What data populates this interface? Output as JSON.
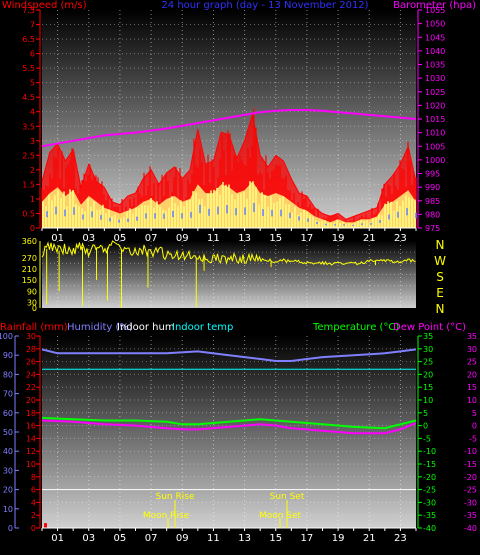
{
  "header": {
    "left_label": "Windspeed (m/s)",
    "center_label": "24 hour graph (day - 13 November 2012)",
    "right_label": "Barometer (hpa)"
  },
  "lower_header": {
    "rain_label": "Rainfall (mm)",
    "hum_label": "Humidity (%)",
    "indoor_hum_label": "Indoor hum",
    "indoor_temp_label": "Indoor temp",
    "temp_label": "Temperature (°C)",
    "dew_label": "Dew Point (°C)"
  },
  "direction_labels": [
    "N",
    "W",
    "S",
    "E",
    "N"
  ],
  "astro": {
    "sun_rise": "Sun Rise",
    "sun_set": "Sun Set",
    "moon_rise": "Moon Rise",
    "moon_set": "Moon Set"
  },
  "colors": {
    "wind_gust": "#ff0000",
    "wind_avg": "#ffff80",
    "wind_avg2": "#6080ff",
    "barometer": "#ff00ff",
    "wind_direction": "#ffff00",
    "humidity": "#8080ff",
    "indoor_humidity": "#ffffff",
    "indoor_temp": "#00ffff",
    "temperature": "#00ff00",
    "dew_point": "#ff00ff",
    "rainfall": "#ff0000",
    "axis_left": "#ff0000",
    "axis_right": "#ff00ff"
  },
  "chart_data": [
    {
      "type": "line",
      "title": "24 hour graph (day - 13 November 2012)",
      "xlabel": "",
      "x_ticks": [
        "01",
        "03",
        "05",
        "07",
        "09",
        "11",
        "13",
        "15",
        "17",
        "19",
        "21",
        "23"
      ],
      "x_range": [
        0,
        24
      ],
      "ylabel": "Windspeed (m/s)",
      "ylim": [
        0,
        7.5
      ],
      "y_ticks": [
        "0",
        "0.5",
        "1",
        "1.5",
        "2",
        "2.5",
        "3",
        "3.5",
        "4",
        "4.5",
        "5",
        "5.5",
        "6",
        "6.5",
        "7",
        "7.5"
      ],
      "y2label": "Barometer (hpa)",
      "y2lim": [
        975,
        1055
      ],
      "y2_ticks": [
        "975",
        "980",
        "985",
        "990",
        "995",
        "1000",
        "1005",
        "1010",
        "1015",
        "1020",
        "1025",
        "1030",
        "1035",
        "1040",
        "1045",
        "1050",
        "1055"
      ],
      "series": [
        {
          "name": "Wind gust",
          "x": [
            0,
            0.5,
            1,
            1.5,
            2,
            2.5,
            3,
            3.5,
            4,
            4.5,
            5,
            5.5,
            6,
            6.5,
            7,
            7.5,
            8,
            8.5,
            9,
            9.5,
            10,
            10.5,
            11,
            11.5,
            12,
            12.5,
            13,
            13.5,
            14,
            14.5,
            15,
            15.5,
            16,
            16.5,
            17,
            17.5,
            18,
            18.5,
            19,
            19.5,
            20,
            20.5,
            21,
            21.5,
            22,
            22.5,
            23,
            23.5,
            24
          ],
          "values": [
            1.6,
            2.6,
            2.9,
            2.3,
            2.7,
            1.4,
            2.2,
            1.6,
            1.4,
            0.9,
            0.8,
            1.1,
            1.2,
            1.7,
            2.0,
            1.5,
            1.9,
            2.1,
            1.7,
            2.0,
            3.4,
            2.2,
            2.3,
            3.3,
            3.2,
            2.4,
            3.0,
            3.9,
            2.5,
            2.1,
            2.5,
            2.3,
            1.7,
            1.2,
            1.1,
            0.7,
            0.5,
            0.4,
            0.5,
            0.3,
            0.4,
            0.5,
            0.6,
            0.7,
            1.5,
            1.8,
            2.2,
            2.8,
            1.6
          ]
        },
        {
          "name": "Wind speed",
          "x": [
            0,
            0.5,
            1,
            1.5,
            2,
            2.5,
            3,
            3.5,
            4,
            4.5,
            5,
            5.5,
            6,
            6.5,
            7,
            7.5,
            8,
            8.5,
            9,
            9.5,
            10,
            10.5,
            11,
            11.5,
            12,
            12.5,
            13,
            13.5,
            14,
            14.5,
            15,
            15.5,
            16,
            16.5,
            17,
            17.5,
            18,
            18.5,
            19,
            19.5,
            20,
            20.5,
            21,
            21.5,
            22,
            22.5,
            23,
            23.5,
            24
          ],
          "values": [
            0.9,
            1.2,
            1.4,
            1.1,
            1.3,
            0.8,
            1.1,
            0.9,
            0.7,
            0.6,
            0.5,
            0.6,
            0.7,
            0.9,
            1.0,
            0.8,
            1.0,
            1.1,
            0.9,
            1.0,
            1.5,
            1.2,
            1.2,
            1.5,
            1.4,
            1.2,
            1.3,
            1.6,
            1.2,
            1.1,
            1.2,
            1.1,
            0.9,
            0.7,
            0.6,
            0.4,
            0.3,
            0.2,
            0.3,
            0.2,
            0.2,
            0.3,
            0.3,
            0.4,
            0.8,
            0.9,
            1.1,
            1.3,
            0.9
          ]
        },
        {
          "name": "Barometer",
          "axis": "right",
          "x": [
            0,
            2,
            4,
            6,
            8,
            10,
            12,
            13,
            14,
            15,
            16,
            17,
            18,
            19,
            20,
            21,
            22,
            23,
            24
          ],
          "values": [
            1005,
            1007,
            1009,
            1010,
            1011.5,
            1013.5,
            1015.5,
            1016.5,
            1017.5,
            1018,
            1018.3,
            1018.3,
            1018,
            1017.5,
            1017,
            1016.5,
            1016,
            1015.5,
            1015
          ]
        }
      ]
    },
    {
      "type": "line",
      "title": "",
      "ylabel": "",
      "ylim": [
        0,
        360
      ],
      "y_ticks": [
        "0",
        "30",
        "90",
        "150",
        "210",
        "270",
        "360"
      ],
      "x_range": [
        0,
        24
      ],
      "series": [
        {
          "name": "Wind direction",
          "x": [
            0,
            0.5,
            1,
            1.5,
            2,
            2.5,
            3,
            3.5,
            4,
            4.5,
            5,
            5.5,
            6,
            6.5,
            7,
            7.5,
            8,
            8.5,
            9,
            9.5,
            10,
            10.5,
            11,
            11.5,
            12,
            12.5,
            13,
            13.5,
            14,
            14.5,
            15,
            15.5,
            16,
            16.5,
            17,
            17.5,
            18,
            18.5,
            19,
            19.5,
            20,
            20.5,
            21,
            21.5,
            22,
            22.5,
            23,
            23.5,
            24
          ],
          "values": [
            300,
            330,
            305,
            320,
            310,
            335,
            300,
            325,
            315,
            340,
            310,
            320,
            300,
            315,
            295,
            305,
            280,
            290,
            275,
            285,
            270,
            280,
            265,
            270,
            262,
            268,
            258,
            265,
            255,
            260,
            250,
            255,
            248,
            250,
            245,
            240,
            240,
            240,
            240,
            240,
            240,
            240,
            255,
            255,
            258,
            245,
            250,
            255,
            250
          ]
        }
      ]
    },
    {
      "type": "line",
      "title": "",
      "x_ticks": [
        "01",
        "03",
        "05",
        "07",
        "09",
        "11",
        "13",
        "15",
        "17",
        "19",
        "21",
        "23"
      ],
      "x_range": [
        0,
        24
      ],
      "ylabel": "Rainfall (mm)",
      "ylim": [
        0,
        30
      ],
      "y_ticks_rain": [
        "0",
        "2",
        "4",
        "6",
        "8",
        "10",
        "12",
        "14",
        "16",
        "18",
        "20",
        "22",
        "24",
        "26",
        "28",
        "30"
      ],
      "y_ticks_humidity": [
        "0",
        "10",
        "20",
        "30",
        "40",
        "50",
        "60",
        "70",
        "80",
        "90",
        "100"
      ],
      "y2label": "Temperature (°C)",
      "y2lim": [
        -40,
        35
      ],
      "y2_ticks": [
        "-40",
        "-35",
        "-30",
        "-25",
        "-20",
        "-15",
        "-10",
        "-5",
        "0",
        "5",
        "10",
        "15",
        "20",
        "25",
        "30",
        "35"
      ],
      "series": [
        {
          "name": "Humidity",
          "axis": "humidity",
          "x": [
            0,
            1,
            2,
            4,
            6,
            8,
            10,
            12,
            13,
            14,
            15,
            16,
            17,
            18,
            20,
            22,
            23,
            24
          ],
          "values": [
            93,
            91,
            91,
            91,
            91,
            91,
            92,
            90,
            89,
            88,
            87,
            87,
            88,
            89,
            90,
            91,
            92,
            93
          ]
        },
        {
          "name": "Indoor hum",
          "axis": "humidity",
          "x": [
            0,
            24
          ],
          "values": [
            20,
            20
          ]
        },
        {
          "name": "Indoor temp",
          "axis": "temp",
          "x": [
            0,
            24
          ],
          "values": [
            22,
            22
          ]
        },
        {
          "name": "Temperature",
          "axis": "temp",
          "x": [
            0,
            2,
            4,
            6,
            8,
            9,
            10,
            12,
            14,
            15,
            16,
            18,
            20,
            22,
            23,
            24
          ],
          "values": [
            3,
            2.5,
            2,
            2,
            1.5,
            0.5,
            0.5,
            1.5,
            2.5,
            2,
            1.5,
            0.5,
            -0.5,
            -1,
            0.5,
            2
          ]
        },
        {
          "name": "Dew Point",
          "axis": "temp",
          "x": [
            0,
            2,
            4,
            6,
            8,
            9,
            10,
            12,
            14,
            15,
            16,
            18,
            20,
            22,
            23,
            24
          ],
          "values": [
            2,
            1.5,
            0.5,
            0,
            -1,
            -1.5,
            -1.5,
            -0.5,
            0.5,
            0,
            -1,
            -2,
            -3,
            -3,
            -1.5,
            1
          ]
        },
        {
          "name": "Rainfall",
          "axis": "rain",
          "x": [
            0,
            0.3
          ],
          "values": [
            0.6,
            0.6
          ]
        }
      ]
    }
  ]
}
